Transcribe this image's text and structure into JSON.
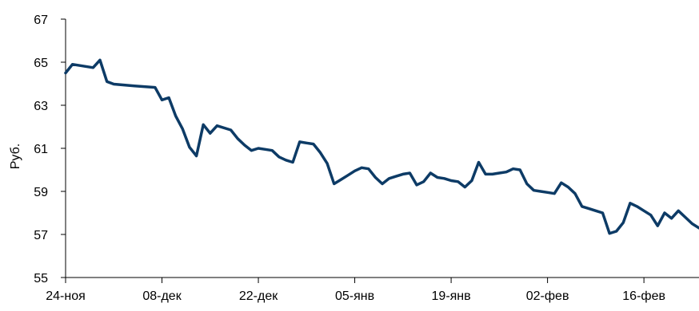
{
  "chart_data": {
    "type": "line",
    "title": "",
    "xlabel": "",
    "ylabel": "Руб.",
    "ylim": [
      55,
      67
    ],
    "yticks": [
      "55",
      "57",
      "59",
      "61",
      "63",
      "65",
      "67"
    ],
    "xticks": [
      "24-ноя",
      "08-дек",
      "22-дек",
      "05-янв",
      "19-янв",
      "02-фев",
      "16-фев"
    ],
    "xlim_days": [
      0,
      92
    ],
    "grid": false,
    "legend": "none",
    "series": [
      {
        "color": "#0d3b66",
        "x": [
          0,
          1,
          4,
          5,
          6,
          7,
          8,
          10,
          12,
          13,
          14,
          15,
          16,
          17,
          18,
          19,
          20,
          21,
          22,
          24,
          25,
          26,
          27,
          28,
          29,
          30,
          31,
          32,
          33,
          34,
          35,
          36,
          37,
          38,
          39,
          40,
          41,
          42,
          43,
          44,
          45,
          46,
          47,
          48,
          49,
          50,
          51,
          52,
          53,
          54,
          55,
          56,
          57,
          58,
          59,
          60,
          61,
          62,
          63,
          64,
          65,
          66,
          67,
          68,
          69,
          70,
          71,
          72,
          73,
          74,
          75,
          76,
          77,
          78,
          79,
          80,
          81,
          82,
          83,
          84,
          85,
          86,
          87,
          88,
          89,
          90,
          91,
          92
        ],
        "values": [
          64.5,
          64.9,
          64.75,
          65.1,
          64.1,
          63.98,
          63.95,
          63.9,
          63.85,
          63.83,
          63.25,
          63.35,
          62.5,
          61.9,
          61.05,
          60.65,
          62.1,
          61.7,
          62.05,
          61.85,
          61.45,
          61.15,
          60.9,
          61.0,
          60.95,
          60.9,
          60.6,
          60.45,
          60.35,
          61.3,
          61.25,
          61.2,
          60.8,
          60.3,
          59.35,
          59.55,
          59.75,
          59.95,
          60.1,
          60.05,
          59.65,
          59.35,
          59.6,
          59.7,
          59.8,
          59.85,
          59.3,
          59.45,
          59.85,
          59.65,
          59.6,
          59.5,
          59.45,
          59.2,
          59.5,
          60.35,
          59.8,
          59.8,
          59.85,
          59.9,
          60.05,
          60.0,
          59.35,
          59.05,
          59.0,
          58.95,
          58.9,
          59.4,
          59.2,
          58.9,
          58.3,
          58.2,
          58.1,
          58.0,
          57.05,
          57.15,
          57.55,
          58.45,
          58.3,
          58.1,
          57.9,
          57.4,
          58.0,
          57.75,
          58.1,
          57.8,
          57.5,
          57.3
        ]
      }
    ]
  }
}
